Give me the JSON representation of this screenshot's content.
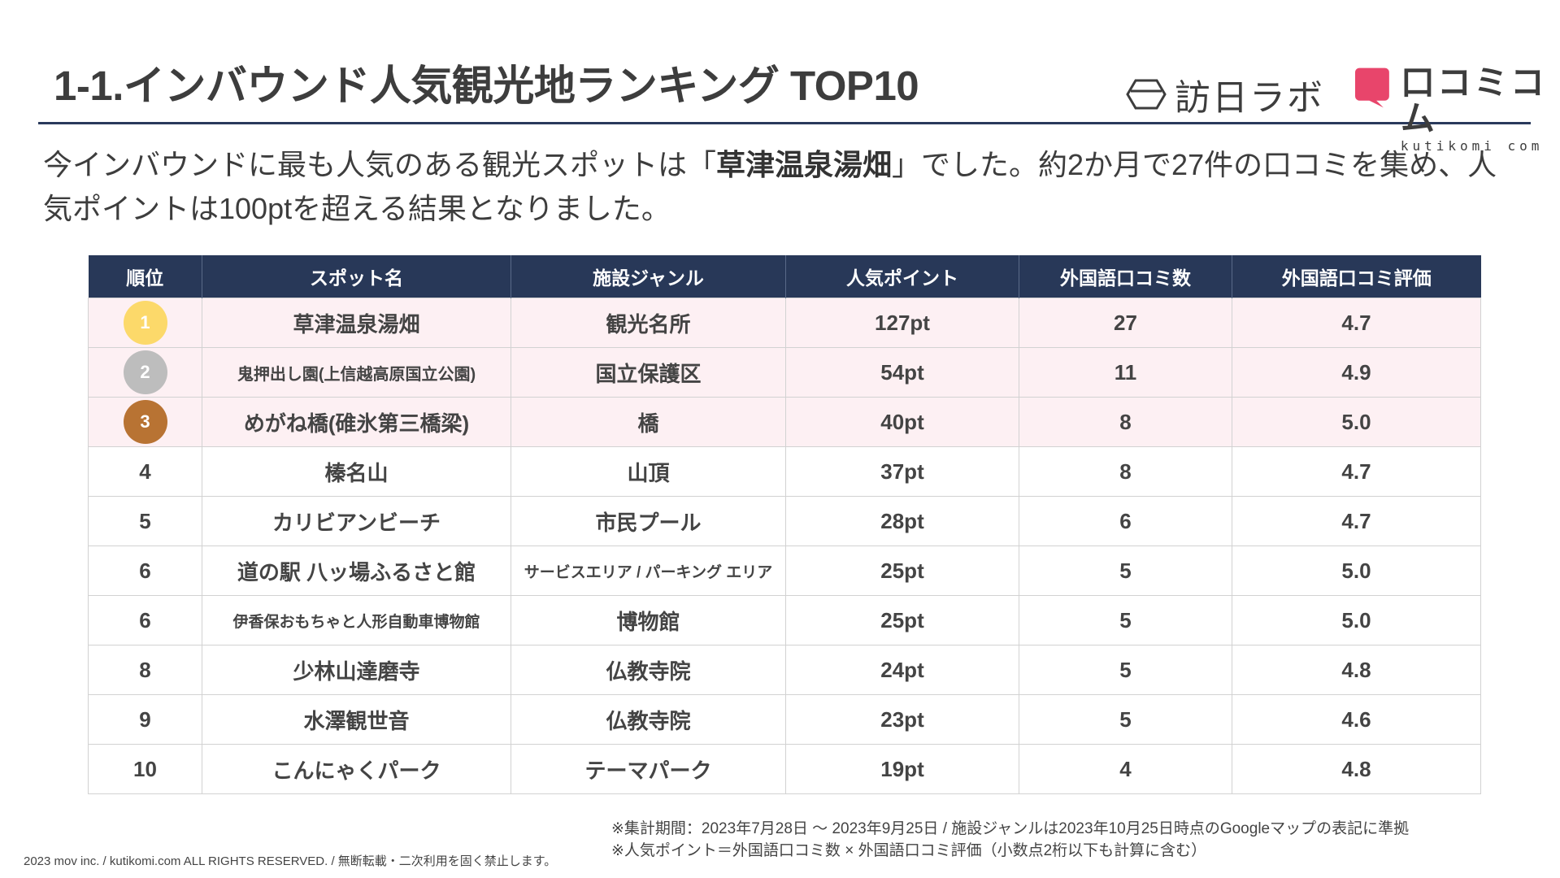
{
  "header": {
    "title": "1-1.インバウンド人気観光地ランキング TOP10"
  },
  "logos": {
    "hounichi": {
      "name": "訪日ラボ",
      "icon": "hexagon-logo-icon"
    },
    "kuchikomi": {
      "name": "口コミコム",
      "sub": "kutikomi com",
      "icon": "speech-bubble-logo-icon",
      "color": "#e8456b"
    }
  },
  "summary": {
    "before": "今インバウンドに最も人気のある観光スポットは「",
    "highlight": "草津温泉湯畑",
    "after": "」でした。約2か月で27件の口コミを集め、人気ポイントは100ptを超える結果となりました。"
  },
  "table": {
    "headers": [
      "順位",
      "スポット名",
      "施設ジャンル",
      "人気ポイント",
      "外国語口コミ数",
      "外国語口コミ評価"
    ],
    "rows": [
      {
        "rank": "1",
        "spot": "草津温泉湯畑",
        "genre": "観光名所",
        "points": "127pt",
        "count": "27",
        "rating": "4.7"
      },
      {
        "rank": "2",
        "spot": "鬼押出し園(上信越高原国立公園)",
        "genre": "国立保護区",
        "points": "54pt",
        "count": "11",
        "rating": "4.9"
      },
      {
        "rank": "3",
        "spot": "めがね橋(碓氷第三橋梁)",
        "genre": "橋",
        "points": "40pt",
        "count": "8",
        "rating": "5.0"
      },
      {
        "rank": "4",
        "spot": "榛名山",
        "genre": "山頂",
        "points": "37pt",
        "count": "8",
        "rating": "4.7"
      },
      {
        "rank": "5",
        "spot": "カリビアンビーチ",
        "genre": "市民プール",
        "points": "28pt",
        "count": "6",
        "rating": "4.7"
      },
      {
        "rank": "6",
        "spot": "道の駅 八ッ場ふるさと館",
        "genre": "サービスエリア / パーキング エリア",
        "points": "25pt",
        "count": "5",
        "rating": "5.0"
      },
      {
        "rank": "6",
        "spot": "伊香保おもちゃと人形自動車博物館",
        "genre": "博物館",
        "points": "25pt",
        "count": "5",
        "rating": "5.0"
      },
      {
        "rank": "8",
        "spot": "少林山達磨寺",
        "genre": "仏教寺院",
        "points": "24pt",
        "count": "5",
        "rating": "4.8"
      },
      {
        "rank": "9",
        "spot": "水澤観世音",
        "genre": "仏教寺院",
        "points": "23pt",
        "count": "5",
        "rating": "4.6"
      },
      {
        "rank": "10",
        "spot": "こんにゃくパーク",
        "genre": "テーマパーク",
        "points": "19pt",
        "count": "4",
        "rating": "4.8"
      }
    ],
    "medal_colors": {
      "gold": "#fcd96a",
      "silver": "#bdbdbd",
      "bronze": "#b87333"
    },
    "header_color": "#283858",
    "highlight_row_color": "#fdf0f3"
  },
  "notes": [
    "※集計期間：2023年7月28日 〜 2023年9月25日 / 施設ジャンルは2023年10月25日時点のGoogleマップの表記に準拠",
    "※人気ポイント＝外国語口コミ数 × 外国語口コミ評価（小数点2桁以下も計算に含む）"
  ],
  "footer": {
    "copyright": "2023 mov inc. / kutikomi.com ALL RIGHTS RESERVED. / 無断転載・二次利用を固く禁止します。"
  }
}
